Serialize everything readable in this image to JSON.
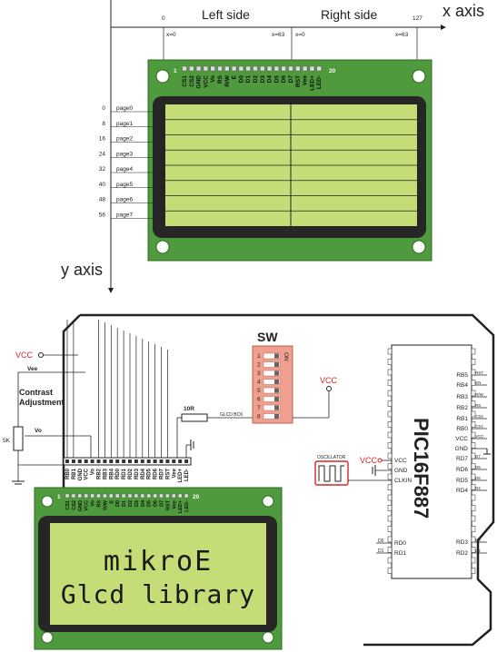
{
  "top": {
    "x_axis": "x axis",
    "y_axis": "y axis",
    "left_side": "Left side",
    "right_side": "Right side",
    "col0": "0",
    "col127": "127",
    "x0_left": "x=0",
    "x63_mid": "x=63",
    "x0_mid": "x=0",
    "x63_right": "x=63",
    "pin1": "1",
    "pin20": "20",
    "pins": [
      "CS1",
      "CS2",
      "GND",
      "VCC",
      "Vo",
      "RS",
      "R/W",
      "E",
      "D0",
      "D1",
      "D2",
      "D3",
      "D4",
      "D5",
      "D6",
      "D7",
      "RST",
      "Vee",
      "LED+",
      "LED-"
    ],
    "rows": [
      "0",
      "8",
      "16",
      "24",
      "32",
      "40",
      "48",
      "56"
    ],
    "pages": [
      "page0",
      "page1",
      "page2",
      "page3",
      "page4",
      "page5",
      "page6",
      "page7"
    ]
  },
  "schematic": {
    "vcc1": "VCC",
    "vee": "Vee",
    "contrast1": "Contrast",
    "contrast2": "Adjustment",
    "vo": "Vo",
    "pot": "5K",
    "resistor": "10R",
    "glcd_bck": "GLCD BCK",
    "sw": "SW",
    "sw_on": "ON",
    "sw_nums": [
      "1",
      "2",
      "3",
      "4",
      "5",
      "6",
      "7",
      "8"
    ],
    "vcc2": "VCC",
    "oscillator": "OSCILLATOR",
    "vcc3": "VCC",
    "mcu": "PIC16F887",
    "mcu_left": [
      "VCC",
      "GND",
      "CLKIN",
      "RD0",
      "RD1"
    ],
    "mcu_right": [
      "RB5",
      "RB4",
      "RB3",
      "RB2",
      "RB1",
      "RB0",
      "VCC",
      "GND",
      "RD7",
      "RD6",
      "RD5",
      "RD4",
      "RD3",
      "RD2"
    ],
    "right_nets": [
      "RST",
      "EN",
      "R/W",
      "RS",
      "CS2",
      "CS1",
      "VCC",
      "",
      "D7",
      "D6",
      "D5",
      "D4",
      "D3",
      "D2"
    ],
    "left_nets": [
      "D0",
      "D1"
    ],
    "header_labels": [
      "RB0",
      "RB1",
      "GND",
      "VCC",
      "Vo",
      "RB2",
      "RB3",
      "RB4",
      "RD0",
      "RD1",
      "RD2",
      "RD3",
      "RD4",
      "RD5",
      "RD6",
      "RD7",
      "RST",
      "Vee",
      "LED+",
      "LED-"
    ]
  },
  "bottom": {
    "pin1": "1",
    "pin20": "20",
    "line1": "mikroE",
    "line2": "Glcd library"
  },
  "colors": {
    "pcb": "#4f9a3d",
    "lcd_frame": "#262626",
    "lcd": "#c5dd76",
    "vcc": "#d22",
    "switch": "#f1a08f"
  }
}
